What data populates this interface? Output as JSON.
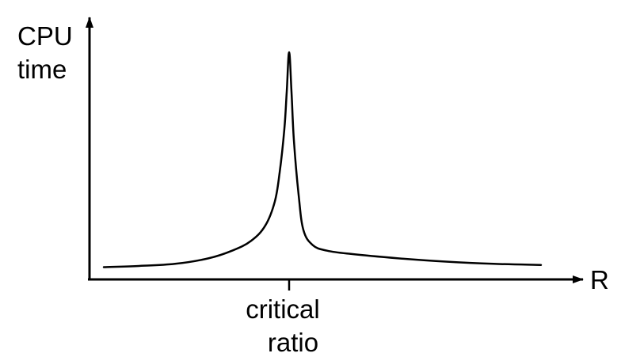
{
  "chart_data": {
    "type": "line",
    "title": "",
    "ylabel_lines": [
      "CPU",
      "time"
    ],
    "xlabel": "R",
    "tick_label_lines": [
      "critical",
      "ratio"
    ],
    "axis_color": "#000000",
    "curve_color": "#000000",
    "grid": false,
    "legend": "none",
    "xlim": [
      0,
      10
    ],
    "ylim": [
      0,
      10
    ],
    "critical_x": 4.2,
    "series": [
      {
        "x": [
          0.3,
          1.0,
          1.8,
          2.5,
          3.0,
          3.4,
          3.7,
          3.9,
          4.0,
          4.1,
          4.15,
          4.2,
          4.25,
          4.3,
          4.4,
          4.5,
          4.7,
          5.0,
          5.5,
          6.5,
          7.5,
          8.5,
          9.5
        ],
        "y": [
          0.2,
          0.25,
          0.35,
          0.6,
          0.95,
          1.4,
          2.1,
          3.2,
          4.5,
          6.5,
          8.2,
          10.0,
          8.2,
          6.0,
          3.5,
          1.9,
          1.2,
          0.95,
          0.8,
          0.6,
          0.45,
          0.35,
          0.3
        ]
      }
    ]
  }
}
